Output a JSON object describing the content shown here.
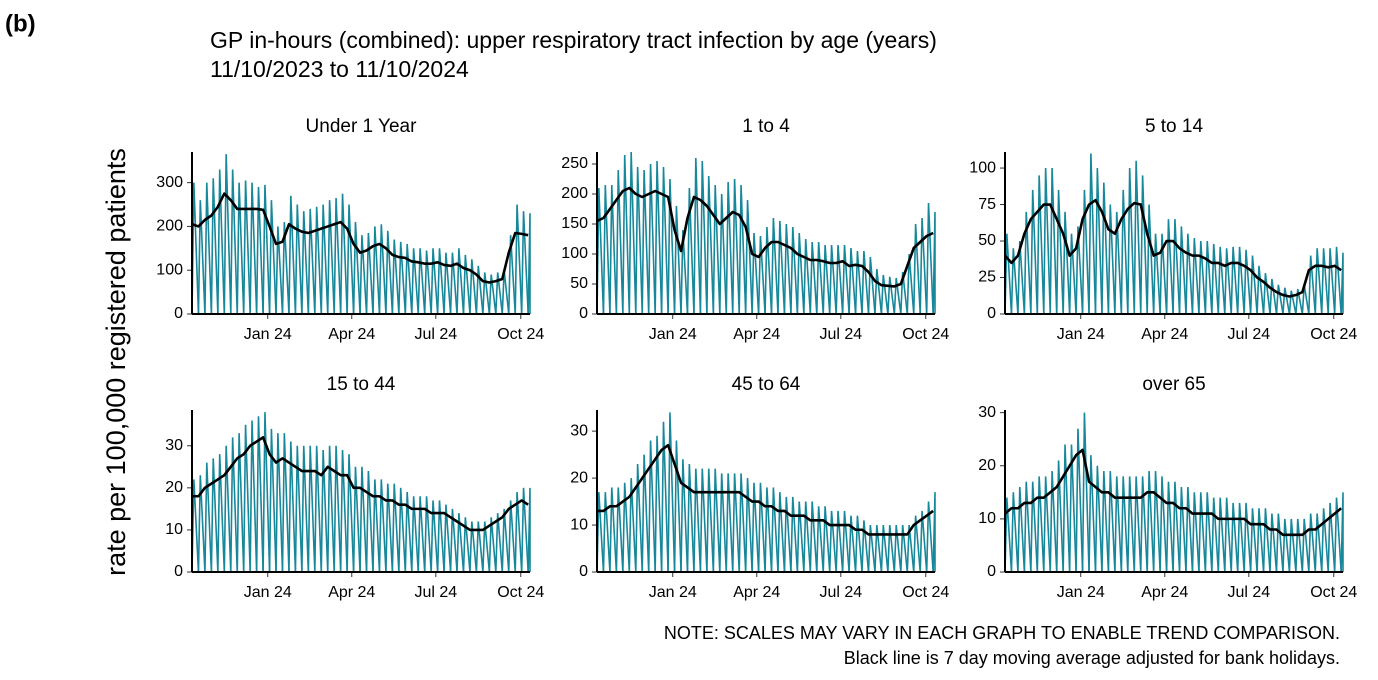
{
  "label": "(b)",
  "chart_data": {
    "type": "line",
    "title": "GP in-hours (combined): upper respiratory tract infection by age (years)",
    "subtitle": "11/10/2023 to 11/10/2024",
    "y_label": "rate per 100,000 registered patients",
    "notes": [
      "NOTE: SCALES MAY VARY IN EACH GRAPH TO ENABLE TREND COMPARISON.",
      "Black line is 7 day moving average adjusted for bank holidays."
    ],
    "x": [
      0,
      7,
      14,
      21,
      28,
      35,
      42,
      49,
      56,
      63,
      70,
      77,
      84,
      91,
      98,
      105,
      112,
      119,
      126,
      133,
      140,
      147,
      154,
      161,
      168,
      175,
      182,
      189,
      196,
      203,
      210,
      217,
      224,
      231,
      238,
      245,
      252,
      259,
      266,
      273,
      280,
      287,
      294,
      301,
      308,
      315,
      322,
      329,
      336,
      343,
      350,
      357,
      364
    ],
    "xlim": [
      0,
      366
    ],
    "xticks": [
      {
        "value": 82,
        "label": "Jan 24"
      },
      {
        "value": 173,
        "label": "Apr 24"
      },
      {
        "value": 264,
        "label": "Jul 24"
      },
      {
        "value": 356,
        "label": "Oct 24"
      }
    ],
    "panels": [
      {
        "title": "Under 1 Year",
        "ylim": [
          0,
          370
        ],
        "yticks": [
          0,
          100,
          200,
          300
        ],
        "series": [
          {
            "color": "#17879a",
            "values": [
              300,
              260,
              300,
              310,
              330,
              365,
              330,
              300,
              305,
              300,
              290,
              295,
              260,
              200,
              210,
              270,
              250,
              235,
              240,
              245,
              250,
              260,
              265,
              275,
              250,
              210,
              180,
              185,
              200,
              205,
              190,
              170,
              165,
              160,
              150,
              150,
              145,
              150,
              150,
              140,
              140,
              150,
              135,
              125,
              110,
              95,
              90,
              95,
              100,
              180,
              250,
              235,
              230
            ]
          },
          {
            "color": "#000000",
            "values": [
              205,
              200,
              215,
              225,
              245,
              275,
              260,
              240,
              240,
              240,
              240,
              238,
              200,
              160,
              165,
              205,
              195,
              188,
              185,
              190,
              195,
              200,
              205,
              210,
              195,
              160,
              140,
              145,
              155,
              160,
              150,
              135,
              130,
              128,
              120,
              118,
              115,
              115,
              118,
              112,
              110,
              115,
              105,
              100,
              90,
              75,
              72,
              75,
              80,
              140,
              185,
              183,
              180
            ]
          }
        ]
      },
      {
        "title": "1 to 4",
        "ylim": [
          0,
          270
        ],
        "yticks": [
          0,
          50,
          100,
          150,
          200,
          250
        ],
        "series": [
          {
            "color": "#17879a",
            "values": [
              210,
              215,
              215,
              240,
              265,
              270,
              245,
              240,
              250,
              255,
              245,
              225,
              180,
              140,
              210,
              260,
              255,
              230,
              215,
              200,
              220,
              225,
              215,
              190,
              135,
              130,
              145,
              160,
              155,
              150,
              145,
              135,
              125,
              120,
              120,
              115,
              115,
              115,
              115,
              110,
              105,
              105,
              95,
              75,
              65,
              62,
              60,
              70,
              100,
              150,
              160,
              185,
              170
            ]
          },
          {
            "color": "#000000",
            "values": [
              155,
              160,
              175,
              190,
              205,
              210,
              200,
              195,
              200,
              205,
              200,
              195,
              140,
              105,
              160,
              195,
              190,
              180,
              165,
              150,
              160,
              170,
              165,
              145,
              100,
              95,
              110,
              120,
              120,
              115,
              110,
              100,
              95,
              90,
              90,
              88,
              85,
              85,
              88,
              80,
              82,
              80,
              70,
              55,
              48,
              47,
              46,
              50,
              80,
              110,
              120,
              130,
              135
            ]
          }
        ]
      },
      {
        "title": "5 to 14",
        "ylim": [
          0,
          111
        ],
        "yticks": [
          0,
          25,
          50,
          75,
          100
        ],
        "series": [
          {
            "color": "#17879a",
            "values": [
              55,
              45,
              50,
              70,
              85,
              95,
              100,
              100,
              85,
              70,
              55,
              60,
              85,
              110,
              100,
              90,
              75,
              70,
              85,
              100,
              105,
              95,
              75,
              55,
              55,
              65,
              65,
              60,
              55,
              52,
              50,
              50,
              48,
              46,
              45,
              46,
              46,
              44,
              40,
              33,
              28,
              24,
              20,
              18,
              16,
              17,
              20,
              40,
              45,
              45,
              45,
              46,
              42
            ]
          },
          {
            "color": "#000000",
            "values": [
              40,
              35,
              40,
              55,
              65,
              70,
              75,
              75,
              65,
              55,
              40,
              45,
              65,
              75,
              78,
              70,
              58,
              55,
              65,
              72,
              76,
              75,
              55,
              40,
              42,
              50,
              50,
              45,
              42,
              40,
              40,
              38,
              35,
              35,
              33,
              35,
              35,
              33,
              30,
              25,
              22,
              18,
              15,
              13,
              12,
              13,
              15,
              30,
              33,
              33,
              32,
              33,
              30
            ]
          }
        ]
      },
      {
        "title": "15 to 44",
        "ylim": [
          0,
          38.5
        ],
        "yticks": [
          0,
          10,
          20,
          30
        ],
        "series": [
          {
            "color": "#17879a",
            "values": [
              22,
              23,
              26,
              27,
              28,
              30,
              32,
              33,
              35,
              36,
              37,
              38,
              34,
              33,
              33,
              31,
              30,
              30,
              30,
              30,
              29,
              30,
              30,
              29,
              28,
              25,
              25,
              24,
              22,
              22,
              21,
              21,
              20,
              19,
              18,
              18,
              18,
              17,
              17,
              16,
              15,
              14,
              13,
              12,
              12,
              12,
              13,
              14,
              15,
              17,
              19,
              20,
              20
            ]
          },
          {
            "color": "#000000",
            "values": [
              18,
              18,
              20,
              21,
              22,
              23,
              25,
              27,
              28,
              30,
              31,
              32,
              28,
              26,
              27,
              26,
              25,
              24,
              24,
              24,
              23,
              25,
              24,
              23,
              23,
              20,
              20,
              19,
              18,
              18,
              17,
              17,
              16,
              16,
              15,
              15,
              15,
              14,
              14,
              14,
              13,
              12,
              11,
              10,
              10,
              10,
              11,
              12,
              13,
              15,
              16,
              17,
              16
            ]
          }
        ]
      },
      {
        "title": "45 to 64",
        "ylim": [
          0,
          34.5
        ],
        "yticks": [
          0,
          10,
          20,
          30
        ],
        "series": [
          {
            "color": "#17879a",
            "values": [
              17,
              17,
              18,
              18,
              19,
              20,
              23,
              25,
              28,
              29,
              32,
              34,
              28,
              24,
              23,
              22,
              22,
              22,
              22,
              21,
              21,
              21,
              21,
              20,
              19,
              19,
              18,
              18,
              17,
              16,
              16,
              15,
              15,
              15,
              14,
              14,
              13,
              13,
              13,
              12,
              12,
              11,
              10,
              10,
              10,
              10,
              10,
              10,
              10,
              12,
              13,
              15,
              17
            ]
          },
          {
            "color": "#000000",
            "values": [
              13,
              13,
              14,
              14,
              15,
              16,
              18,
              20,
              22,
              24,
              26,
              27,
              23,
              19,
              18,
              17,
              17,
              17,
              17,
              17,
              17,
              17,
              17,
              16,
              15,
              15,
              14,
              14,
              13,
              13,
              12,
              12,
              12,
              11,
              11,
              11,
              10,
              10,
              10,
              10,
              9,
              9,
              8,
              8,
              8,
              8,
              8,
              8,
              8,
              10,
              11,
              12,
              13
            ]
          }
        ]
      },
      {
        "title": "over 65",
        "ylim": [
          0,
          30.5
        ],
        "yticks": [
          0,
          10,
          20,
          30
        ],
        "series": [
          {
            "color": "#17879a",
            "values": [
              14,
              15,
              16,
              17,
              17,
              18,
              18,
              19,
              21,
              24,
              24,
              27,
              30,
              22,
              20,
              19,
              19,
              18,
              18,
              18,
              18,
              18,
              19,
              19,
              18,
              17,
              17,
              16,
              16,
              15,
              15,
              15,
              14,
              14,
              14,
              13,
              13,
              13,
              12,
              12,
              12,
              11,
              11,
              10,
              10,
              10,
              10,
              11,
              11,
              12,
              13,
              14,
              15
            ]
          },
          {
            "color": "#000000",
            "values": [
              11,
              12,
              12,
              13,
              13,
              14,
              14,
              15,
              16,
              18,
              20,
              22,
              23,
              17,
              16,
              15,
              15,
              14,
              14,
              14,
              14,
              14,
              15,
              15,
              14,
              13,
              13,
              12,
              12,
              11,
              11,
              11,
              11,
              10,
              10,
              10,
              10,
              10,
              9,
              9,
              9,
              8,
              8,
              7,
              7,
              7,
              7,
              8,
              8,
              9,
              10,
              11,
              12
            ]
          }
        ]
      }
    ]
  }
}
